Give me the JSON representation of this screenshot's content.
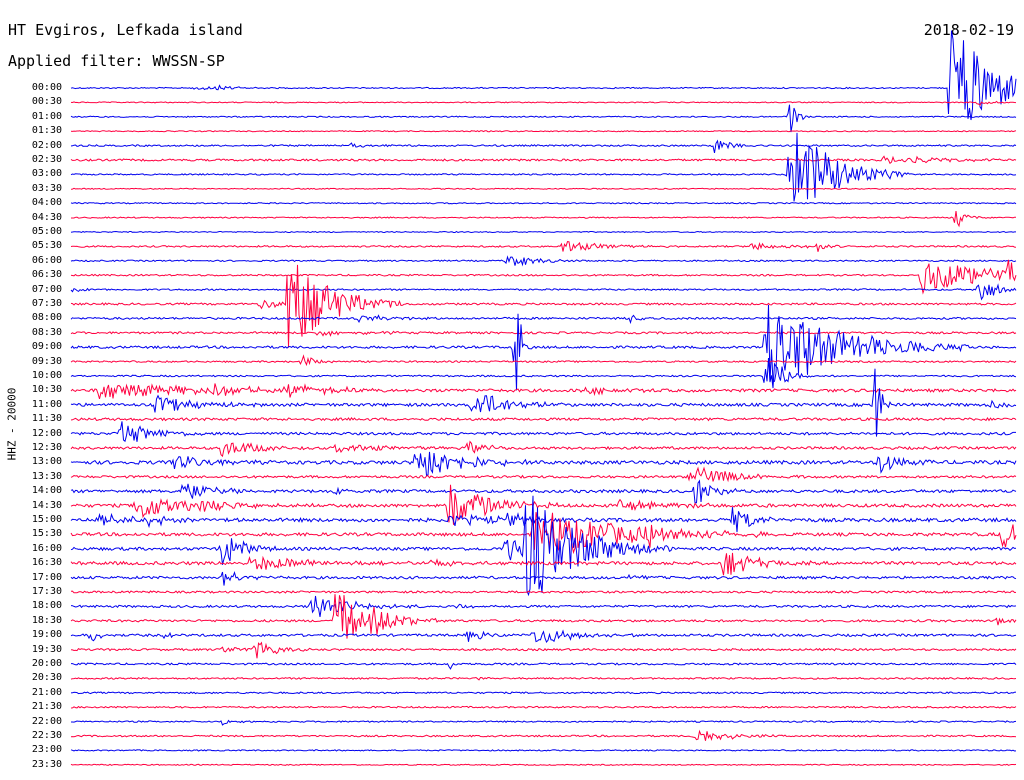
{
  "header": {
    "station": "HT Evgiros, Lefkada island",
    "filter": "Applied filter: WWSSN-SP",
    "date": "2018-02-19",
    "channel": "HHZ - 20000"
  },
  "colors": {
    "trace_a": "#0000ee",
    "trace_b": "#ff0040",
    "background": "#ffffff"
  },
  "time_labels": [
    "00:00",
    "00:30",
    "01:00",
    "01:30",
    "02:00",
    "02:30",
    "03:00",
    "03:30",
    "04:00",
    "04:30",
    "05:00",
    "05:30",
    "06:00",
    "06:30",
    "07:00",
    "07:30",
    "08:00",
    "08:30",
    "09:00",
    "09:30",
    "10:00",
    "10:30",
    "11:00",
    "11:30",
    "12:00",
    "12:30",
    "13:00",
    "13:30",
    "14:00",
    "14:30",
    "15:00",
    "15:30",
    "16:00",
    "16:30",
    "17:00",
    "17:30",
    "18:00",
    "18:30",
    "19:00",
    "19:30",
    "20:00",
    "20:30",
    "21:00",
    "21:30",
    "22:00",
    "22:30",
    "23:00",
    "23:30"
  ],
  "noise": [
    0.6,
    0.5,
    0.6,
    0.5,
    0.8,
    1.0,
    0.7,
    0.5,
    0.6,
    0.6,
    0.5,
    0.8,
    0.7,
    0.8,
    0.8,
    1.0,
    1.0,
    1.0,
    1.2,
    0.8,
    0.8,
    1.5,
    1.5,
    1.3,
    1.3,
    1.3,
    1.8,
    1.2,
    1.5,
    1.6,
    1.8,
    1.6,
    1.5,
    1.6,
    1.3,
    1.0,
    1.1,
    1.1,
    1.2,
    1.0,
    0.9,
    0.8,
    0.8,
    0.8,
    0.7,
    0.8,
    0.6,
    0.5
  ],
  "events": [
    {
      "row": 0,
      "pos": 0.13,
      "amp": 3,
      "dur": 0.02
    },
    {
      "row": 0,
      "pos": 0.155,
      "amp": 3,
      "dur": 0.015
    },
    {
      "row": 0,
      "pos": 0.93,
      "amp": 70,
      "dur": 0.04
    },
    {
      "row": 1,
      "pos": 0.96,
      "amp": 4,
      "dur": 0.01
    },
    {
      "row": 2,
      "pos": 0.76,
      "amp": 40,
      "dur": 0.005
    },
    {
      "row": 4,
      "pos": 0.68,
      "amp": 9,
      "dur": 0.015
    },
    {
      "row": 4,
      "pos": 0.295,
      "amp": 3,
      "dur": 0.02
    },
    {
      "row": 5,
      "pos": 0.86,
      "amp": 4,
      "dur": 0.06
    },
    {
      "row": 6,
      "pos": 0.76,
      "amp": 55,
      "dur": 0.04
    },
    {
      "row": 6,
      "pos": 0.82,
      "amp": 7,
      "dur": 0.02
    },
    {
      "row": 9,
      "pos": 0.935,
      "amp": 12,
      "dur": 0.01
    },
    {
      "row": 11,
      "pos": 0.52,
      "amp": 6,
      "dur": 0.04
    },
    {
      "row": 11,
      "pos": 0.72,
      "amp": 4,
      "dur": 0.04
    },
    {
      "row": 11,
      "pos": 0.79,
      "amp": 6,
      "dur": 0.01
    },
    {
      "row": 12,
      "pos": 0.46,
      "amp": 7,
      "dur": 0.03
    },
    {
      "row": 13,
      "pos": 0.9,
      "amp": 18,
      "dur": 0.07
    },
    {
      "row": 13,
      "pos": 0.99,
      "amp": 14,
      "dur": 0.02
    },
    {
      "row": 14,
      "pos": 0.96,
      "amp": 16,
      "dur": 0.015
    },
    {
      "row": 14,
      "pos": 0.0,
      "amp": 4,
      "dur": 0.01
    },
    {
      "row": 15,
      "pos": 0.23,
      "amp": 55,
      "dur": 0.04
    },
    {
      "row": 15,
      "pos": 0.2,
      "amp": 5,
      "dur": 0.03
    },
    {
      "row": 16,
      "pos": 0.305,
      "amp": 4,
      "dur": 0.03
    },
    {
      "row": 16,
      "pos": 0.59,
      "amp": 5,
      "dur": 0.01
    },
    {
      "row": 17,
      "pos": 0.26,
      "amp": 3,
      "dur": 0.05
    },
    {
      "row": 18,
      "pos": 0.735,
      "amp": 48,
      "dur": 0.07
    },
    {
      "row": 18,
      "pos": 0.775,
      "amp": 10,
      "dur": 0.03
    },
    {
      "row": 18,
      "pos": 0.815,
      "amp": 6,
      "dur": 0.01
    },
    {
      "row": 18,
      "pos": 0.47,
      "amp": 70,
      "dur": 0.005
    },
    {
      "row": 19,
      "pos": 0.245,
      "amp": 9,
      "dur": 0.01
    },
    {
      "row": 20,
      "pos": 0.735,
      "amp": 30,
      "dur": 0.015
    },
    {
      "row": 21,
      "pos": 0.03,
      "amp": 10,
      "dur": 0.08
    },
    {
      "row": 21,
      "pos": 0.15,
      "amp": 6,
      "dur": 0.05
    },
    {
      "row": 21,
      "pos": 0.23,
      "amp": 6,
      "dur": 0.05
    },
    {
      "row": 21,
      "pos": 0.54,
      "amp": 4,
      "dur": 0.04
    },
    {
      "row": 22,
      "pos": 0.425,
      "amp": 18,
      "dur": 0.03
    },
    {
      "row": 22,
      "pos": 0.09,
      "amp": 10,
      "dur": 0.04
    },
    {
      "row": 22,
      "pos": 0.975,
      "amp": 5,
      "dur": 0.01
    },
    {
      "row": 22,
      "pos": 0.85,
      "amp": 60,
      "dur": 0.005
    },
    {
      "row": 24,
      "pos": 0.053,
      "amp": 14,
      "dur": 0.03
    },
    {
      "row": 25,
      "pos": 0.16,
      "amp": 10,
      "dur": 0.03
    },
    {
      "row": 25,
      "pos": 0.28,
      "amp": 4,
      "dur": 0.05
    },
    {
      "row": 25,
      "pos": 0.42,
      "amp": 6,
      "dur": 0.02
    },
    {
      "row": 26,
      "pos": 0.11,
      "amp": 7,
      "dur": 0.04
    },
    {
      "row": 26,
      "pos": 0.365,
      "amp": 22,
      "dur": 0.04
    },
    {
      "row": 26,
      "pos": 0.855,
      "amp": 12,
      "dur": 0.02
    },
    {
      "row": 27,
      "pos": 0.655,
      "amp": 12,
      "dur": 0.04
    },
    {
      "row": 28,
      "pos": 0.115,
      "amp": 12,
      "dur": 0.03
    },
    {
      "row": 28,
      "pos": 0.28,
      "amp": 4,
      "dur": 0.01
    },
    {
      "row": 28,
      "pos": 0.66,
      "amp": 14,
      "dur": 0.02
    },
    {
      "row": 29,
      "pos": 0.07,
      "amp": 16,
      "dur": 0.04
    },
    {
      "row": 29,
      "pos": 0.14,
      "amp": 6,
      "dur": 0.05
    },
    {
      "row": 29,
      "pos": 0.4,
      "amp": 24,
      "dur": 0.04
    },
    {
      "row": 29,
      "pos": 0.58,
      "amp": 5,
      "dur": 0.06
    },
    {
      "row": 30,
      "pos": 0.03,
      "amp": 5,
      "dur": 0.05
    },
    {
      "row": 30,
      "pos": 0.08,
      "amp": 6,
      "dur": 0.02
    },
    {
      "row": 30,
      "pos": 0.4,
      "amp": 6,
      "dur": 0.05
    },
    {
      "row": 30,
      "pos": 0.46,
      "amp": 10,
      "dur": 0.02
    },
    {
      "row": 30,
      "pos": 0.7,
      "amp": 14,
      "dur": 0.02
    },
    {
      "row": 31,
      "pos": 0.49,
      "amp": 28,
      "dur": 0.08
    },
    {
      "row": 31,
      "pos": 0.61,
      "amp": 8,
      "dur": 0.04
    },
    {
      "row": 31,
      "pos": 0.985,
      "amp": 14,
      "dur": 0.03
    },
    {
      "row": 32,
      "pos": 0.16,
      "amp": 20,
      "dur": 0.02
    },
    {
      "row": 32,
      "pos": 0.46,
      "amp": 14,
      "dur": 0.02
    },
    {
      "row": 32,
      "pos": 0.48,
      "amp": 60,
      "dur": 0.05
    },
    {
      "row": 33,
      "pos": 0.19,
      "amp": 8,
      "dur": 0.06
    },
    {
      "row": 33,
      "pos": 0.69,
      "amp": 16,
      "dur": 0.03
    },
    {
      "row": 33,
      "pos": 0.38,
      "amp": 3,
      "dur": 0.03
    },
    {
      "row": 34,
      "pos": 0.16,
      "amp": 8,
      "dur": 0.02
    },
    {
      "row": 34,
      "pos": 0.59,
      "amp": 7,
      "dur": 0.01
    },
    {
      "row": 36,
      "pos": 0.255,
      "amp": 12,
      "dur": 0.04
    },
    {
      "row": 36,
      "pos": 0.41,
      "amp": 4,
      "dur": 0.01
    },
    {
      "row": 37,
      "pos": 0.28,
      "amp": 40,
      "dur": 0.02
    },
    {
      "row": 37,
      "pos": 0.315,
      "amp": 14,
      "dur": 0.03
    },
    {
      "row": 37,
      "pos": 0.98,
      "amp": 5,
      "dur": 0.01
    },
    {
      "row": 38,
      "pos": 0.02,
      "amp": 7,
      "dur": 0.01
    },
    {
      "row": 38,
      "pos": 0.42,
      "amp": 6,
      "dur": 0.02
    },
    {
      "row": 38,
      "pos": 0.49,
      "amp": 10,
      "dur": 0.04
    },
    {
      "row": 38,
      "pos": 0.1,
      "amp": 4,
      "dur": 0.01
    },
    {
      "row": 39,
      "pos": 0.195,
      "amp": 12,
      "dur": 0.02
    },
    {
      "row": 39,
      "pos": 0.16,
      "amp": 4,
      "dur": 0.02
    },
    {
      "row": 40,
      "pos": 0.4,
      "amp": 6,
      "dur": 0.005
    },
    {
      "row": 41,
      "pos": 0.43,
      "amp": 3,
      "dur": 0.005
    },
    {
      "row": 44,
      "pos": 0.16,
      "amp": 3,
      "dur": 0.01
    },
    {
      "row": 45,
      "pos": 0.66,
      "amp": 10,
      "dur": 0.03
    }
  ]
}
